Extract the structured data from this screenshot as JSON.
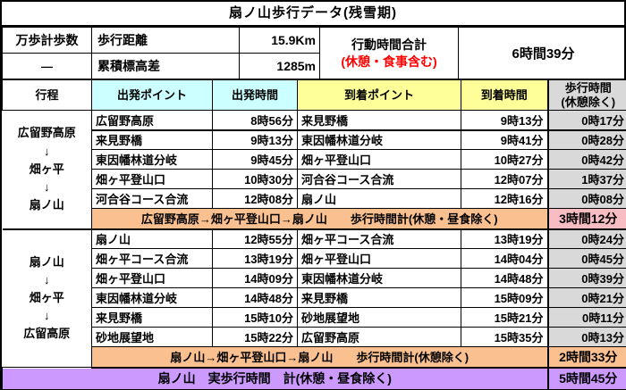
{
  "title": "扇ノ山歩行データ(残雪期)",
  "info": {
    "pedometer_label": "万歩計歩数",
    "pedometer_value": "―",
    "distance_label": "歩行距離",
    "distance_value": "15.9Km",
    "elevation_label": "累積標高差",
    "elevation_value": "1285m",
    "total_time_label": "行動時間合計",
    "total_time_note": "(休憩・食事含む)",
    "total_time_value": "6時間39分"
  },
  "header": {
    "route": "行程",
    "depart_point": "出発ポイント",
    "depart_time": "出発時間",
    "arrive_point": "到着ポイント",
    "arrive_time": "到着時間",
    "walk_time": "歩行時間\n(休憩除く)"
  },
  "sections": [
    {
      "route_lines": [
        "広留野高原",
        "↓",
        "畑ヶ平",
        "↓",
        "扇ノ山"
      ],
      "rows": [
        [
          "広留野高原",
          "8時56分",
          "来見野橋",
          "9時13分",
          "0時17分"
        ],
        [
          "来見野橋",
          "9時13分",
          "東因幡林道分岐",
          "9時41分",
          "0時28分"
        ],
        [
          "東因幡林道分岐",
          "9時45分",
          "畑ヶ平登山口",
          "10時27分",
          "0時42分"
        ],
        [
          "畑ヶ平登山口",
          "10時30分",
          "河合谷コース合流",
          "12時07分",
          "1時37分"
        ],
        [
          "河合谷コース合流",
          "12時08分",
          "扇ノ山",
          "12時16分",
          "0時08分"
        ]
      ],
      "summary_label": "広留野高原→畑ヶ平登山口→扇ノ山　　歩行時間計(休憩・昼食除く)",
      "summary_value": "3時間12分",
      "summary_value_bg": "#f8bdc2"
    },
    {
      "route_lines": [
        "扇ノ山",
        "↓",
        "畑ヶ平",
        "↓",
        "広留高原"
      ],
      "rows": [
        [
          "扇ノ山",
          "12時55分",
          "畑ヶ平コース合流",
          "13時19分",
          "0時24分"
        ],
        [
          "畑ヶ平コース合流",
          "13時19分",
          "畑ヶ平登山口",
          "14時04分",
          "0時45分"
        ],
        [
          "畑ヶ平登山口",
          "14時09分",
          "東因幡林道分岐",
          "14時48分",
          "0時39分"
        ],
        [
          "東因幡林道分岐",
          "14時48分",
          "来見野橋",
          "15時09分",
          "0時21分"
        ],
        [
          "来見野橋",
          "15時10分",
          "砂地展望地",
          "15時21分",
          "0時11分"
        ],
        [
          "砂地展望地",
          "15時22分",
          "広留野高原",
          "15時35分",
          "0時13分"
        ]
      ],
      "summary_label": "扇ノ山→畑ヶ平登山口→扇ノ山　　歩行時間計(休憩除く)",
      "summary_value": "2時間33分",
      "summary_value_bg": "#fac090"
    }
  ],
  "footer": {
    "label": "扇ノ山　実歩行時間　計(休憩・昼食除く)",
    "value": "5時間45分"
  },
  "colors": {
    "depart_header_bg": "#ccffff",
    "arrive_header_bg": "#ffff99",
    "walk_column_bg": "#d9d9d9",
    "summary_bg": "#fac090",
    "summary1_value_bg": "#f8bdc2",
    "summary2_value_bg": "#fac090",
    "footer_bg": "#cc99ff",
    "note_red": "#ff0000",
    "border": "#000000"
  }
}
